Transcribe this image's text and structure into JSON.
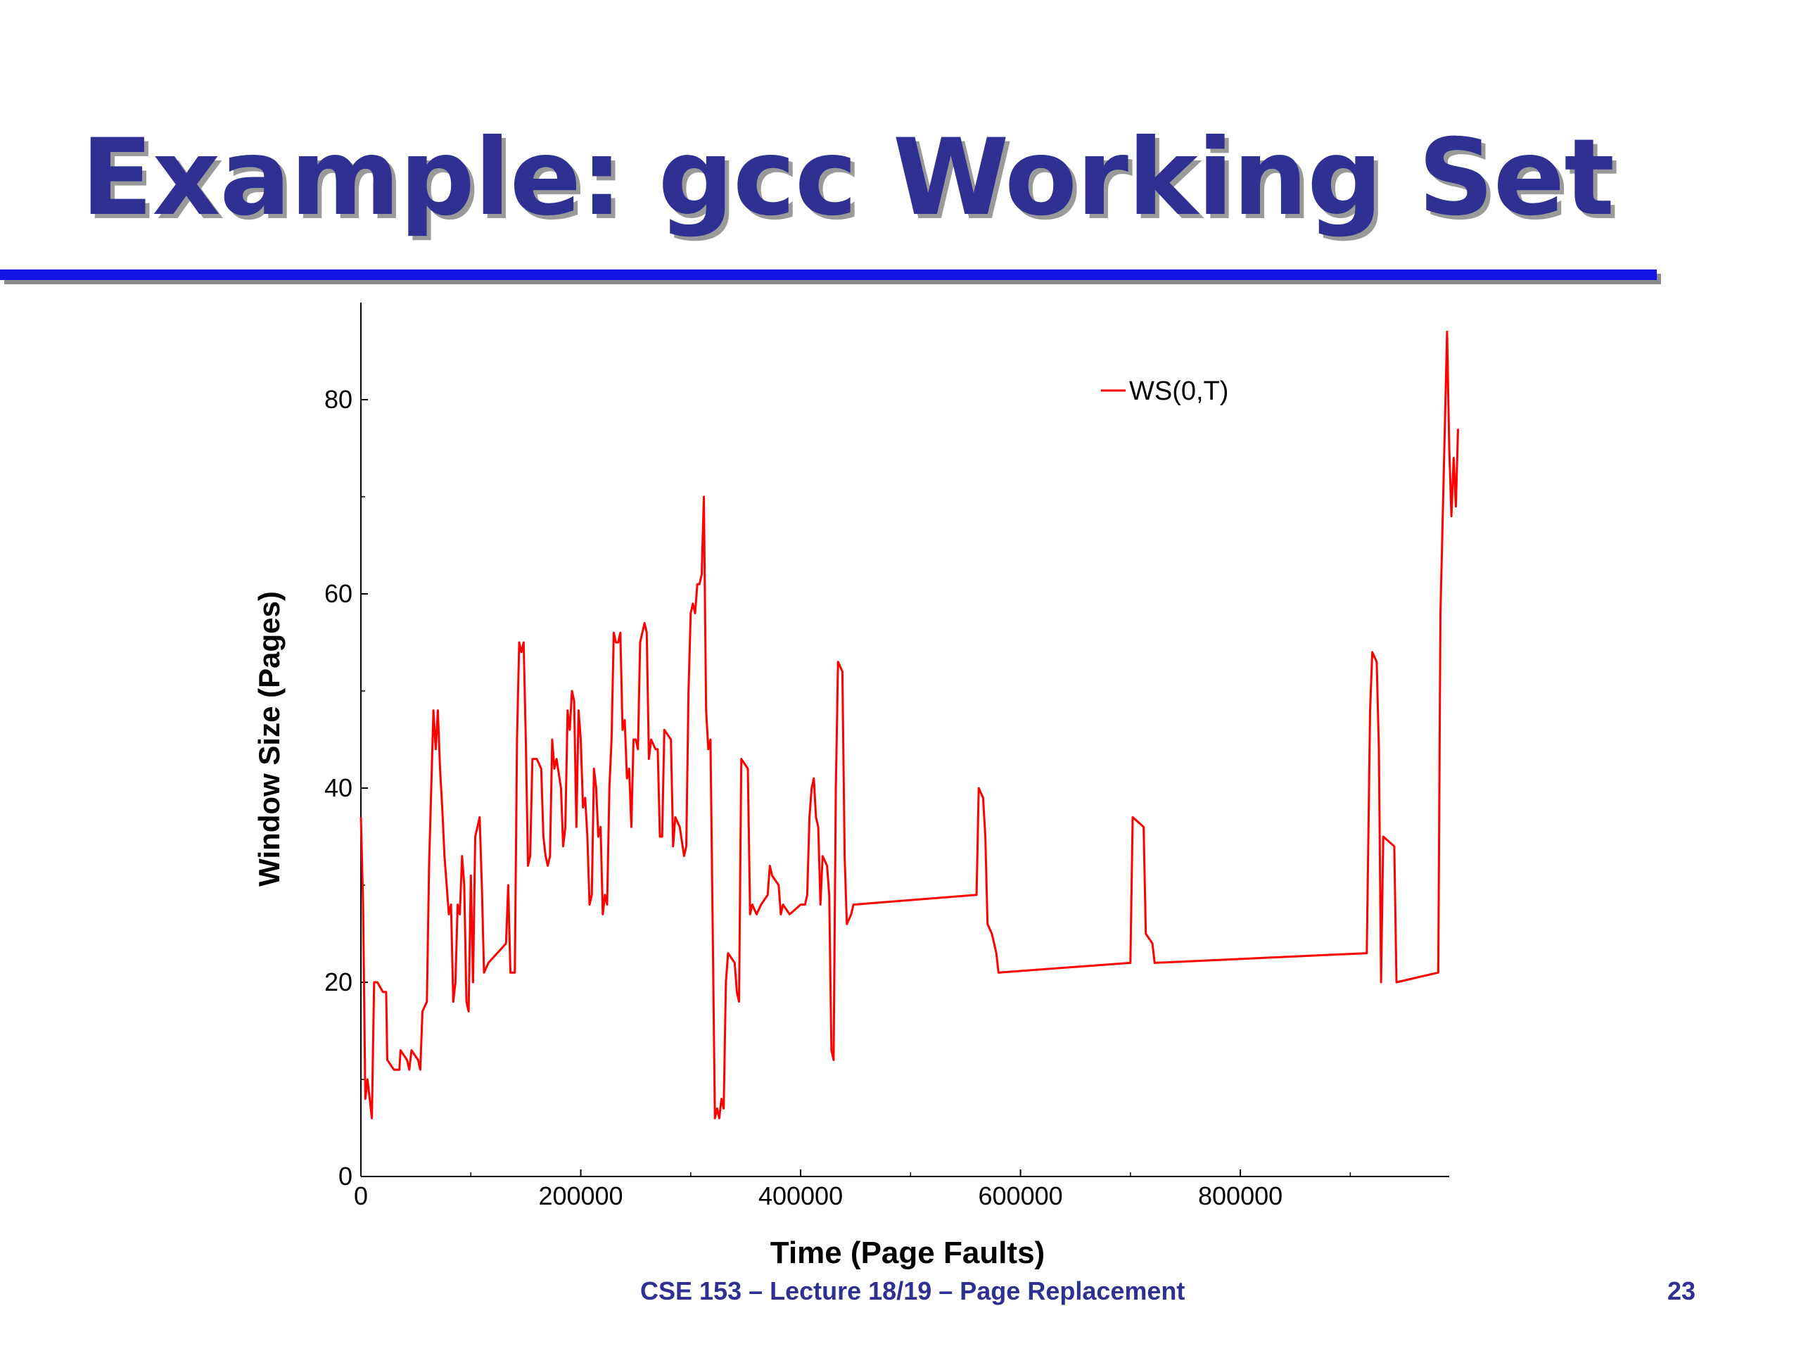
{
  "slide": {
    "title": "Example: gcc Working Set",
    "footer": "CSE 153 – Lecture 18/19 – Page Replacement",
    "page_number": "23"
  },
  "colors": {
    "title": "#2e3192",
    "rule": "#1414e6",
    "series": "#ff0000",
    "footer": "#2e3192"
  },
  "chart_data": {
    "type": "line",
    "title": "",
    "xlabel": "Time (Page Faults)",
    "ylabel": "Window Size (Pages)",
    "xlim": [
      0,
      990000
    ],
    "ylim": [
      0,
      90
    ],
    "x_ticks": [
      0,
      200000,
      400000,
      600000,
      800000
    ],
    "x_ticklabels": [
      "0",
      "200000",
      "400000",
      "600000",
      "800000"
    ],
    "y_ticks": [
      0,
      20,
      40,
      60,
      80
    ],
    "y_ticklabels": [
      "0",
      "20",
      "40",
      "60",
      "80"
    ],
    "legend": "top-right",
    "grid": false,
    "series": [
      {
        "name": "WS(0,T)",
        "color": "#ff0000",
        "points": [
          [
            0,
            37
          ],
          [
            2000,
            28
          ],
          [
            4000,
            8
          ],
          [
            6000,
            10
          ],
          [
            8000,
            8
          ],
          [
            10000,
            6
          ],
          [
            12000,
            20
          ],
          [
            15000,
            20
          ],
          [
            20000,
            19
          ],
          [
            23000,
            19
          ],
          [
            24000,
            12
          ],
          [
            30000,
            11
          ],
          [
            35000,
            11
          ],
          [
            36000,
            13
          ],
          [
            42000,
            12
          ],
          [
            44000,
            11
          ],
          [
            46000,
            13
          ],
          [
            52000,
            12
          ],
          [
            54000,
            11
          ],
          [
            56000,
            17
          ],
          [
            60000,
            18
          ],
          [
            62000,
            32
          ],
          [
            66000,
            48
          ],
          [
            68000,
            44
          ],
          [
            70000,
            48
          ],
          [
            72000,
            42
          ],
          [
            74000,
            38
          ],
          [
            76000,
            33
          ],
          [
            78000,
            30
          ],
          [
            80000,
            27
          ],
          [
            82000,
            28
          ],
          [
            84000,
            18
          ],
          [
            86000,
            20
          ],
          [
            88000,
            28
          ],
          [
            90000,
            27
          ],
          [
            92000,
            33
          ],
          [
            94000,
            30
          ],
          [
            96000,
            18
          ],
          [
            98000,
            17
          ],
          [
            100000,
            31
          ],
          [
            102000,
            20
          ],
          [
            104000,
            35
          ],
          [
            108000,
            37
          ],
          [
            110000,
            30
          ],
          [
            112000,
            21
          ],
          [
            116000,
            22
          ],
          [
            120000,
            22.5
          ],
          [
            124000,
            23
          ],
          [
            128000,
            23.5
          ],
          [
            132000,
            24
          ],
          [
            134000,
            30
          ],
          [
            136000,
            21
          ],
          [
            140000,
            21
          ],
          [
            142000,
            45
          ],
          [
            144000,
            55
          ],
          [
            146000,
            54
          ],
          [
            148000,
            55
          ],
          [
            150000,
            45
          ],
          [
            152000,
            32
          ],
          [
            154000,
            33
          ],
          [
            156000,
            43
          ],
          [
            160000,
            43
          ],
          [
            164000,
            42
          ],
          [
            166000,
            35
          ],
          [
            168000,
            33
          ],
          [
            170000,
            32
          ],
          [
            172000,
            33
          ],
          [
            174000,
            45
          ],
          [
            176000,
            42
          ],
          [
            178000,
            43
          ],
          [
            182000,
            40
          ],
          [
            184000,
            34
          ],
          [
            186000,
            36
          ],
          [
            188000,
            48
          ],
          [
            190000,
            46
          ],
          [
            192000,
            50
          ],
          [
            194000,
            49
          ],
          [
            196000,
            36
          ],
          [
            198000,
            48
          ],
          [
            200000,
            45
          ],
          [
            202000,
            38
          ],
          [
            204000,
            39
          ],
          [
            206000,
            35
          ],
          [
            208000,
            28
          ],
          [
            210000,
            29
          ],
          [
            212000,
            42
          ],
          [
            214000,
            40
          ],
          [
            216000,
            35
          ],
          [
            218000,
            36
          ],
          [
            220000,
            27
          ],
          [
            222000,
            29
          ],
          [
            224000,
            28
          ],
          [
            226000,
            40
          ],
          [
            228000,
            45
          ],
          [
            230000,
            56
          ],
          [
            232000,
            55
          ],
          [
            234000,
            55
          ],
          [
            236000,
            56
          ],
          [
            238000,
            46
          ],
          [
            240000,
            47
          ],
          [
            242000,
            41
          ],
          [
            244000,
            42
          ],
          [
            246000,
            36
          ],
          [
            248000,
            45
          ],
          [
            250000,
            45
          ],
          [
            252000,
            44
          ],
          [
            254000,
            55
          ],
          [
            258000,
            57
          ],
          [
            260000,
            56
          ],
          [
            262000,
            43
          ],
          [
            264000,
            45
          ],
          [
            268000,
            44
          ],
          [
            270000,
            44
          ],
          [
            272000,
            35
          ],
          [
            274000,
            35
          ],
          [
            276000,
            46
          ],
          [
            282000,
            45
          ],
          [
            284000,
            34
          ],
          [
            286000,
            37
          ],
          [
            290000,
            36
          ],
          [
            294000,
            33
          ],
          [
            296000,
            34
          ],
          [
            298000,
            50
          ],
          [
            300000,
            58
          ],
          [
            302000,
            59
          ],
          [
            304000,
            58
          ],
          [
            306000,
            61
          ],
          [
            308000,
            61
          ],
          [
            310000,
            62
          ],
          [
            312000,
            70
          ],
          [
            314000,
            48
          ],
          [
            316000,
            44
          ],
          [
            318000,
            45
          ],
          [
            320000,
            26
          ],
          [
            322000,
            6
          ],
          [
            324000,
            7
          ],
          [
            326000,
            6
          ],
          [
            328000,
            8
          ],
          [
            330000,
            7
          ],
          [
            332000,
            20
          ],
          [
            334000,
            23
          ],
          [
            340000,
            22
          ],
          [
            342000,
            19
          ],
          [
            344000,
            18
          ],
          [
            346000,
            43
          ],
          [
            352000,
            42
          ],
          [
            354000,
            27
          ],
          [
            356000,
            28
          ],
          [
            360000,
            27
          ],
          [
            364000,
            28
          ],
          [
            370000,
            29
          ],
          [
            372000,
            32
          ],
          [
            374000,
            31
          ],
          [
            380000,
            30
          ],
          [
            382000,
            27
          ],
          [
            384000,
            28
          ],
          [
            390000,
            27
          ],
          [
            400000,
            28
          ],
          [
            404000,
            28
          ],
          [
            406000,
            29
          ],
          [
            408000,
            37
          ],
          [
            410000,
            40
          ],
          [
            412000,
            41
          ],
          [
            414000,
            37
          ],
          [
            416000,
            36
          ],
          [
            418000,
            28
          ],
          [
            420000,
            33
          ],
          [
            424000,
            32
          ],
          [
            426000,
            29
          ],
          [
            428000,
            13
          ],
          [
            430000,
            12
          ],
          [
            432000,
            40
          ],
          [
            434000,
            53
          ],
          [
            438000,
            52
          ],
          [
            440000,
            33
          ],
          [
            442000,
            26
          ],
          [
            446000,
            27
          ],
          [
            448000,
            28
          ],
          [
            560000,
            29
          ],
          [
            562000,
            40
          ],
          [
            566000,
            39
          ],
          [
            568000,
            35
          ],
          [
            570000,
            26
          ],
          [
            574000,
            25
          ],
          [
            576000,
            24
          ],
          [
            578000,
            23
          ],
          [
            580000,
            21
          ],
          [
            700000,
            22
          ],
          [
            702000,
            37
          ],
          [
            712000,
            36
          ],
          [
            714000,
            25
          ],
          [
            720000,
            24
          ],
          [
            722000,
            22
          ],
          [
            915000,
            23
          ],
          [
            918000,
            48
          ],
          [
            920000,
            54
          ],
          [
            924000,
            53
          ],
          [
            926000,
            44
          ],
          [
            928000,
            20
          ],
          [
            930000,
            35
          ],
          [
            940000,
            34
          ],
          [
            942000,
            20
          ],
          [
            980000,
            21
          ],
          [
            982000,
            58
          ],
          [
            986000,
            77
          ],
          [
            988000,
            87
          ],
          [
            990000,
            75
          ],
          [
            992000,
            68
          ],
          [
            994000,
            74
          ],
          [
            996000,
            69
          ],
          [
            998000,
            77
          ]
        ]
      }
    ]
  }
}
